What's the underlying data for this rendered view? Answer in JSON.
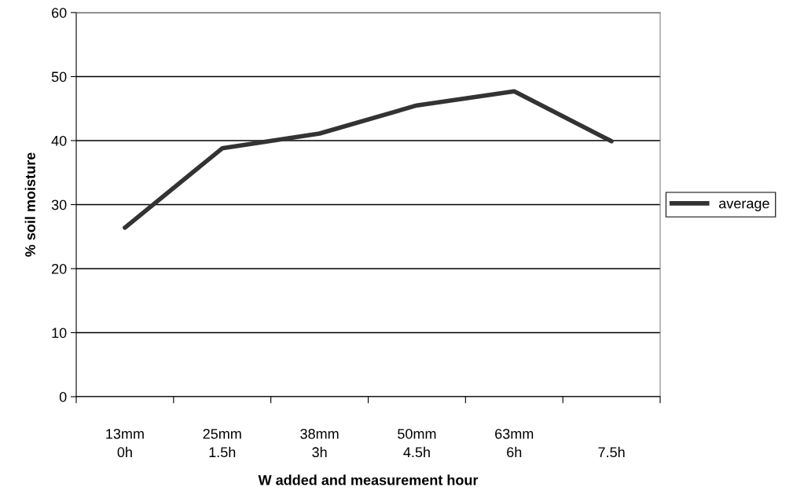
{
  "chart_data": {
    "type": "line",
    "xlabel": "W added and measurement hour",
    "ylabel": "% soil moisture",
    "categories": [
      "13mm\n0h",
      "25mm\n1.5h",
      "38mm\n3h",
      "50mm\n4.5h",
      "63mm\n6h",
      "7.5h"
    ],
    "series": [
      {
        "name": "average",
        "color": "#333333",
        "values": [
          26.4,
          38.8,
          41.1,
          45.5,
          47.7,
          39.9
        ]
      }
    ],
    "ylim": [
      0,
      60
    ],
    "yticks": [
      0,
      10,
      20,
      30,
      40,
      50,
      60
    ],
    "grid": "y",
    "legend": "right",
    "marker": "none",
    "line_style": "solid"
  }
}
